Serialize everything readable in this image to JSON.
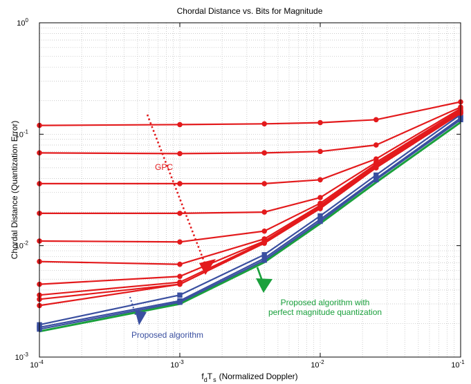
{
  "chart_data": {
    "type": "line",
    "title": "Chordal Distance vs. Bits for Magnitude",
    "xlabel": "f_dT_s (Normalized Doppler)",
    "xlabel_parts": {
      "f": "f",
      "d": "d",
      "T": "T",
      "s": "s",
      "rest": "(Normalized Doppler)"
    },
    "ylabel": "Chordal Distance (Quantization Error)",
    "xscale": "log",
    "yscale": "log",
    "xlim": [
      0.0001,
      0.1
    ],
    "ylim": [
      0.001,
      1
    ],
    "grid": true,
    "x": [
      0.0001,
      0.001,
      0.004,
      0.01,
      0.025,
      0.1
    ],
    "x_ticks": [
      {
        "base": "10",
        "exp": "-4",
        "value": 0.0001
      },
      {
        "base": "10",
        "exp": "-3",
        "value": 0.001
      },
      {
        "base": "10",
        "exp": "-2",
        "value": 0.01
      },
      {
        "base": "10",
        "exp": "-1",
        "value": 0.1
      }
    ],
    "y_ticks": [
      {
        "base": "10",
        "exp": "-3",
        "value": 0.001
      },
      {
        "base": "10",
        "exp": "-2",
        "value": 0.01
      },
      {
        "base": "10",
        "exp": "-1",
        "value": 0.1
      },
      {
        "base": "10",
        "exp": "0",
        "value": 1
      }
    ],
    "colors": {
      "gpc": "#e31a1c",
      "proposed": "#3a4fa0",
      "perfect": "#1aa03c",
      "grid": "#b8b8b8"
    },
    "series": [
      {
        "group": "gpc",
        "marker": "circle",
        "values": [
          0.12,
          0.122,
          0.124,
          0.127,
          0.135,
          0.195
        ]
      },
      {
        "group": "gpc",
        "marker": "circle",
        "values": [
          0.068,
          0.067,
          0.068,
          0.07,
          0.08,
          0.175
        ]
      },
      {
        "group": "gpc",
        "marker": "circle",
        "values": [
          0.036,
          0.036,
          0.036,
          0.039,
          0.06,
          0.17
        ]
      },
      {
        "group": "gpc",
        "marker": "circle",
        "values": [
          0.0195,
          0.0195,
          0.02,
          0.027,
          0.056,
          0.165
        ]
      },
      {
        "group": "gpc",
        "marker": "circle",
        "values": [
          0.011,
          0.0108,
          0.0135,
          0.024,
          0.054,
          0.162
        ]
      },
      {
        "group": "gpc",
        "marker": "circle",
        "values": [
          0.0072,
          0.0068,
          0.0115,
          0.023,
          0.053,
          0.16
        ]
      },
      {
        "group": "gpc",
        "marker": "circle",
        "values": [
          0.0045,
          0.0053,
          0.011,
          0.0225,
          0.052,
          0.158
        ]
      },
      {
        "group": "gpc",
        "marker": "circle",
        "values": [
          0.0036,
          0.0047,
          0.0108,
          0.022,
          0.051,
          0.156
        ]
      },
      {
        "group": "gpc",
        "marker": "circle",
        "values": [
          0.0033,
          0.0045,
          0.0106,
          0.0218,
          0.05,
          0.155
        ]
      },
      {
        "group": "gpc",
        "marker": "circle",
        "values": [
          0.0029,
          0.0045,
          0.0105,
          0.0215,
          0.05,
          0.154
        ]
      },
      {
        "group": "proposed",
        "marker": "square",
        "values": [
          0.00195,
          0.0036,
          0.0083,
          0.0185,
          0.043,
          0.15
        ]
      },
      {
        "group": "proposed",
        "marker": "square",
        "values": [
          0.00185,
          0.0032,
          0.0077,
          0.0172,
          0.04,
          0.14
        ]
      },
      {
        "group": "proposed",
        "marker": "square",
        "values": [
          0.00178,
          0.0031,
          0.0074,
          0.0165,
          0.039,
          0.135
        ]
      },
      {
        "group": "perfect",
        "marker": "none",
        "values": [
          0.0017,
          0.003,
          0.0071,
          0.0158,
          0.037,
          0.128
        ]
      }
    ],
    "annotations": [
      {
        "id": "gpc",
        "text": "GPC",
        "color": "#e31a1c",
        "lines": [
          "GPC"
        ]
      },
      {
        "id": "proposed",
        "text": "Proposed algorithm",
        "color": "#3a4fa0",
        "lines": [
          "Proposed algorithm"
        ]
      },
      {
        "id": "perfect",
        "text": "Proposed algorithm with perfect magnitude quantization",
        "color": "#1aa03c",
        "lines": [
          "Proposed algorithm with",
          "perfect magnitude quantization"
        ]
      }
    ]
  }
}
